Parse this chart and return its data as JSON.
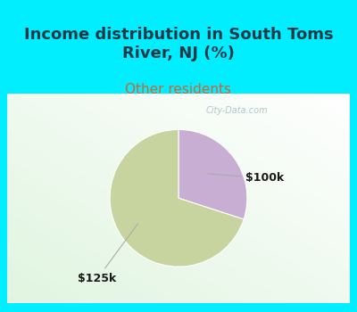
{
  "title": "Income distribution in South Toms\nRiver, NJ (%)",
  "subtitle": "Other residents",
  "slices": [
    {
      "label": "$100k",
      "value": 30,
      "color": "#c9aed4"
    },
    {
      "label": "$125k",
      "value": 70,
      "color": "#c8d4a0"
    }
  ],
  "title_color": "#1a3a4a",
  "subtitle_color": "#cc6633",
  "background_color": "#00eeff",
  "chart_bg_color": "#f0faf0",
  "label_color": "#1a1a1a",
  "watermark": "City-Data.com",
  "watermark_color": "#aabbc0",
  "title_fontsize": 13,
  "subtitle_fontsize": 11,
  "label_fontsize": 9,
  "pie_startangle": 90,
  "slice_100k_pct": 30,
  "slice_125k_pct": 70
}
